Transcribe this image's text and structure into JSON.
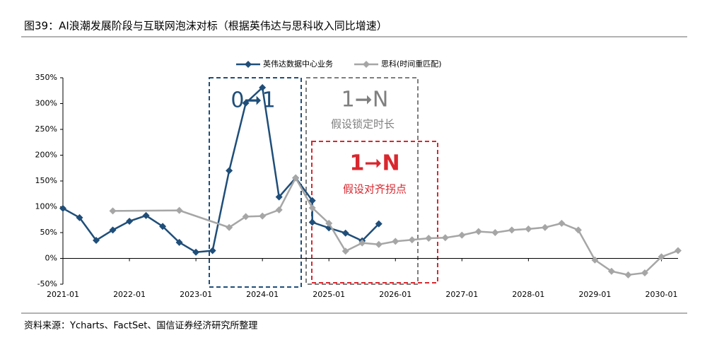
{
  "chart_data": {
    "type": "line",
    "title": "图39：AI浪潮发展阶段与互联网泡沫对标（根据英伟达与思科收入同比增速）",
    "source": "资料来源：Ycharts、FactSet、国信证券经济研究所整理",
    "annotations": [
      "0➞1",
      "1➞N",
      "假设锁定时长",
      "1➞N",
      "假设对齐拐点"
    ],
    "xlim": [
      "2021-01",
      "2030-04"
    ],
    "xticks": [
      "2021-01",
      "2022-01",
      "2023-01",
      "2024-01",
      "2025-01",
      "2026-01",
      "2027-01",
      "2028-01",
      "2029-01",
      "2030-01"
    ],
    "ylim": [
      -50,
      350
    ],
    "yticks": [
      {
        "value": -50,
        "label": "-50%"
      },
      {
        "value": 0,
        "label": "0%"
      },
      {
        "value": 50,
        "label": "50%"
      },
      {
        "value": 100,
        "label": "100%"
      },
      {
        "value": 150,
        "label": "150%"
      },
      {
        "value": 200,
        "label": "200%"
      },
      {
        "value": 250,
        "label": "250%"
      },
      {
        "value": 300,
        "label": "300%"
      },
      {
        "value": 350,
        "label": "350%"
      }
    ],
    "legend": "top",
    "series": [
      {
        "name": "英伟达数据中心业务",
        "color": "#1f4e79",
        "x": [
          "2021-01",
          "2021-04",
          "2021-07",
          "2021-10",
          "2022-01",
          "2022-04",
          "2022-07",
          "2022-10",
          "2023-01",
          "2023-04",
          "2023-07",
          "2023-10",
          "2024-01",
          "2024-04",
          "2024-07",
          "2024-10",
          "2024-10",
          "2025-01",
          "2025-04",
          "2025-07",
          "2025-10"
        ],
        "values": [
          97,
          79,
          35,
          55,
          72,
          83,
          62,
          31,
          12,
          15,
          170,
          301,
          331,
          119,
          156,
          112,
          70,
          59,
          49,
          34,
          67
        ]
      },
      {
        "name": "思科(时间重匹配)",
        "color": "#a6a6a6",
        "x": [
          "2021-10",
          "2022-10",
          "2023-07",
          "2023-10",
          "2024-01",
          "2024-04",
          "2024-07",
          "2024-10",
          "2025-01",
          "2025-04",
          "2025-07",
          "2025-10",
          "2026-01",
          "2026-04",
          "2026-07",
          "2026-10",
          "2027-01",
          "2027-04",
          "2027-07",
          "2027-10",
          "2028-01",
          "2028-04",
          "2028-07",
          "2028-10",
          "2029-01",
          "2029-04",
          "2029-07",
          "2029-10",
          "2030-01",
          "2030-04"
        ],
        "values": [
          92,
          93,
          60,
          81,
          82,
          94,
          156,
          98,
          68,
          14,
          30,
          27,
          33,
          36,
          39,
          40,
          45,
          52,
          50,
          55,
          57,
          60,
          68,
          55,
          -3,
          -25,
          -32,
          -28,
          3,
          15
        ]
      }
    ]
  }
}
